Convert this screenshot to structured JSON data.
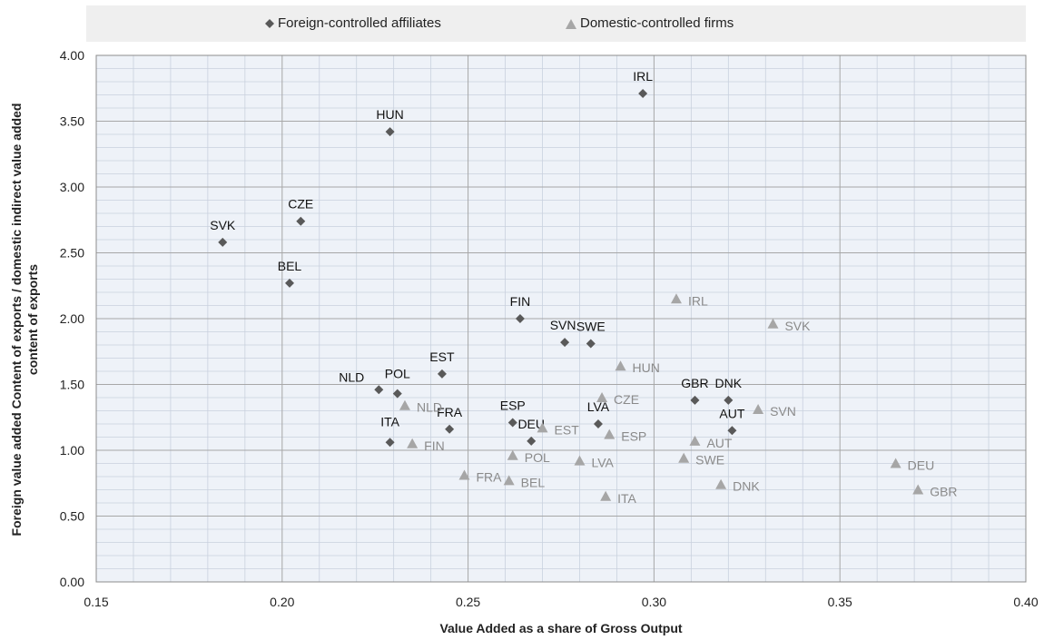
{
  "chart_data": {
    "type": "scatter",
    "xlabel": "Value Added  as a share of Gross Output",
    "ylabel_line1": "Foreign value  added Content of exports / domestic indirect value added",
    "ylabel_line2": "content of exports",
    "xlim": [
      0.15,
      0.4
    ],
    "ylim": [
      0.0,
      4.0
    ],
    "x_ticks": [
      0.15,
      0.2,
      0.25,
      0.3,
      0.35,
      0.4
    ],
    "y_ticks": [
      0.0,
      0.5,
      1.0,
      1.5,
      2.0,
      2.5,
      3.0,
      3.5,
      4.0
    ],
    "x_minor_step": 0.01,
    "y_minor_step": 0.1,
    "grid": true,
    "legend_position": "top",
    "series": [
      {
        "name": "Foreign-controlled affiliates",
        "marker": "diamond",
        "color": "#595959",
        "points": [
          {
            "label": "IRL",
            "x": 0.297,
            "y": 3.71
          },
          {
            "label": "HUN",
            "x": 0.229,
            "y": 3.42
          },
          {
            "label": "CZE",
            "x": 0.205,
            "y": 2.74
          },
          {
            "label": "SVK",
            "x": 0.184,
            "y": 2.58
          },
          {
            "label": "BEL",
            "x": 0.202,
            "y": 2.27
          },
          {
            "label": "FIN",
            "x": 0.264,
            "y": 2.0
          },
          {
            "label": "SVN",
            "x": 0.276,
            "y": 1.82
          },
          {
            "label": "SWE",
            "x": 0.283,
            "y": 1.81
          },
          {
            "label": "EST",
            "x": 0.243,
            "y": 1.58
          },
          {
            "label": "NLD",
            "x": 0.226,
            "y": 1.46
          },
          {
            "label": "POL",
            "x": 0.231,
            "y": 1.43
          },
          {
            "label": "GBR",
            "x": 0.311,
            "y": 1.38
          },
          {
            "label": "DNK",
            "x": 0.32,
            "y": 1.38
          },
          {
            "label": "ESP",
            "x": 0.262,
            "y": 1.21
          },
          {
            "label": "LVA",
            "x": 0.285,
            "y": 1.2
          },
          {
            "label": "FRA",
            "x": 0.245,
            "y": 1.16
          },
          {
            "label": "AUT",
            "x": 0.321,
            "y": 1.15
          },
          {
            "label": "DEU",
            "x": 0.267,
            "y": 1.07
          },
          {
            "label": "ITA",
            "x": 0.229,
            "y": 1.06
          }
        ]
      },
      {
        "name": "Domestic-controlled firms",
        "marker": "triangle",
        "color": "#a6a6a6",
        "points": [
          {
            "label": "IRL",
            "x": 0.306,
            "y": 2.15
          },
          {
            "label": "SVK",
            "x": 0.332,
            "y": 1.96
          },
          {
            "label": "HUN",
            "x": 0.291,
            "y": 1.64
          },
          {
            "label": "CZE",
            "x": 0.286,
            "y": 1.4
          },
          {
            "label": "NLD",
            "x": 0.233,
            "y": 1.34
          },
          {
            "label": "SVN",
            "x": 0.328,
            "y": 1.31
          },
          {
            "label": "EST",
            "x": 0.27,
            "y": 1.17
          },
          {
            "label": "ESP",
            "x": 0.288,
            "y": 1.12
          },
          {
            "label": "AUT",
            "x": 0.311,
            "y": 1.07
          },
          {
            "label": "FIN",
            "x": 0.235,
            "y": 1.05
          },
          {
            "label": "POL",
            "x": 0.262,
            "y": 0.96
          },
          {
            "label": "SWE",
            "x": 0.308,
            "y": 0.94
          },
          {
            "label": "LVA",
            "x": 0.28,
            "y": 0.92
          },
          {
            "label": "DEU",
            "x": 0.365,
            "y": 0.9
          },
          {
            "label": "FRA",
            "x": 0.249,
            "y": 0.81
          },
          {
            "label": "BEL",
            "x": 0.261,
            "y": 0.77
          },
          {
            "label": "DNK",
            "x": 0.318,
            "y": 0.74
          },
          {
            "label": "GBR",
            "x": 0.371,
            "y": 0.7
          },
          {
            "label": "ITA",
            "x": 0.287,
            "y": 0.65
          }
        ]
      }
    ]
  }
}
